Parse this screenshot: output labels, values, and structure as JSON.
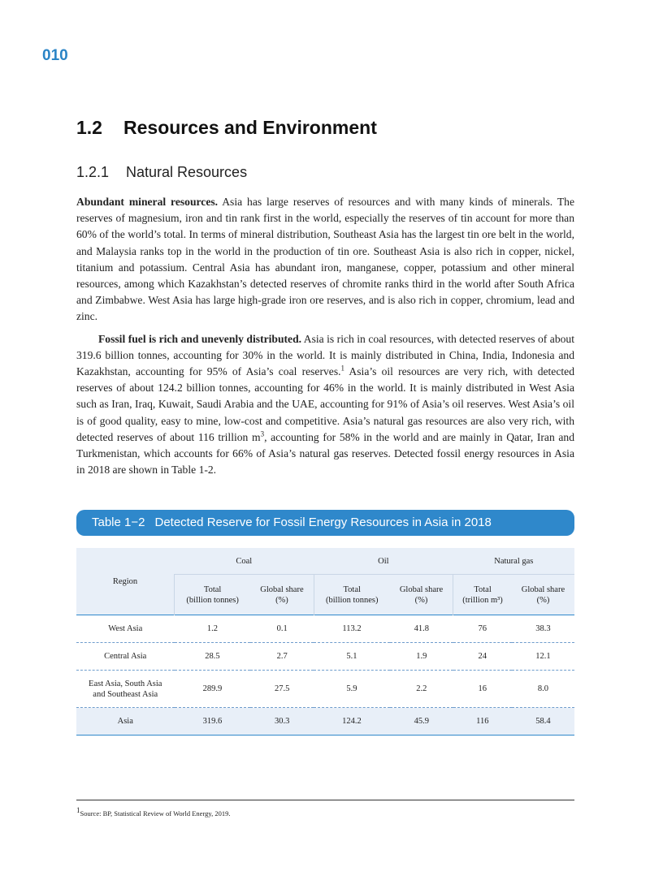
{
  "page_number": "010",
  "section": {
    "number": "1.2",
    "title": "Resources and Environment"
  },
  "subsection": {
    "number": "1.2.1",
    "title": "Natural Resources"
  },
  "paragraphs": [
    {
      "runs": [
        {
          "b": "Abundant mineral resources."
        },
        {
          "t": " Asia has large reserves of resources and with many kinds of minerals. The reserves of magnesium, iron and tin rank first in the world, especially the reserves of tin account for more than 60% of the world’s total. In terms of mineral distribution, Southeast Asia has the largest tin ore belt in the world, and Malaysia ranks top in the world in the production of tin ore. Southeast Asia is also rich in copper, nickel, titanium and potassium. Central Asia has abundant iron, manganese, copper, potassium and other mineral resources, among which Kazakhstan’s detected reserves of chromite ranks third in the world after South Africa and Zimbabwe. West Asia has large high-grade iron ore reserves, and is also rich in copper, chromium, lead and zinc."
        }
      ]
    },
    {
      "runs": [
        {
          "b": "Fossil fuel is rich and unevenly distributed."
        },
        {
          "t": " Asia is rich in coal resources, with detected reserves of about 319.6 billion tonnes, accounting for 30% in the world. It is mainly distributed in China, India, Indonesia and Kazakhstan, accounting for 95% of Asia’s coal reserves."
        },
        {
          "s": "1"
        },
        {
          "t": " Asia’s oil resources are very rich, with detected reserves of about 124.2 billion tonnes, accounting for 46% in the world. It is mainly distributed in West Asia such as Iran, Iraq, Kuwait, Saudi Arabia and the UAE, accounting for 91% of Asia’s oil reserves. West Asia’s oil is of good quality, easy to mine, low-cost and competitive. Asia’s natural gas resources are also very rich, with detected reserves of about 116 trillion m"
        },
        {
          "s": "3"
        },
        {
          "t": ", accounting for 58% in the world and are mainly in Qatar, Iran and Turkmenistan, which accounts for 66% of Asia’s natural gas reserves. Detected fossil energy resources in Asia in 2018 are shown in Table 1-2."
        }
      ]
    }
  ],
  "table": {
    "caption": {
      "label": "Table 1−2",
      "title": "Detected Reserve for Fossil Energy Resources in Asia in 2018"
    },
    "region_header": "Region",
    "groups": [
      {
        "name": "Coal",
        "columns": [
          "Total\n(billion tonnes)",
          "Global share\n(%)"
        ]
      },
      {
        "name": "Oil",
        "columns": [
          "Total\n(billion tonnes)",
          "Global share\n(%)"
        ]
      },
      {
        "name": "Natural gas",
        "columns": [
          "Total\n(trillion m³)",
          "Global share\n(%)"
        ]
      }
    ],
    "rows": [
      [
        "West Asia",
        "1.2",
        "0.1",
        "113.2",
        "41.8",
        "76",
        "38.3"
      ],
      [
        "Central Asia",
        "28.5",
        "2.7",
        "5.1",
        "1.9",
        "24",
        "12.1"
      ],
      [
        "East Asia, South Asia\nand Southeast Asia",
        "289.9",
        "27.5",
        "5.9",
        "2.2",
        "16",
        "8.0"
      ],
      [
        "Asia",
        "319.6",
        "30.3",
        "124.2",
        "45.9",
        "116",
        "58.4"
      ]
    ]
  },
  "footnote": {
    "runs": [
      {
        "s": "1"
      },
      {
        "t": "Source: BP, Statistical Review of World Energy, 2019."
      }
    ]
  }
}
